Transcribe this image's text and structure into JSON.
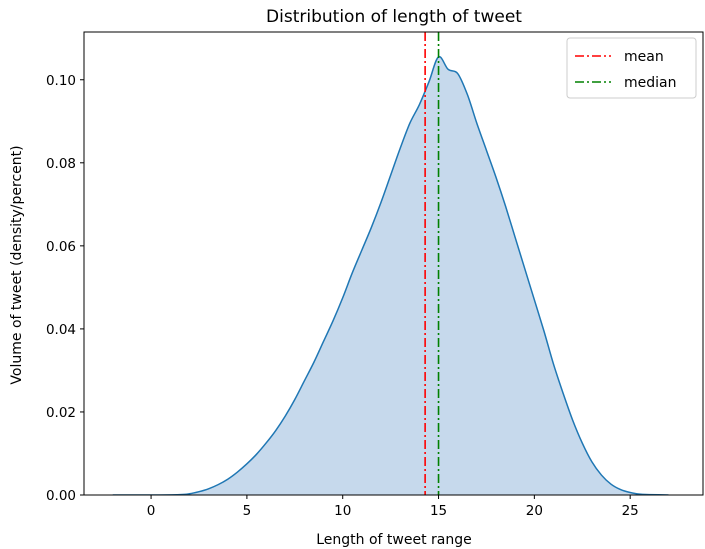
{
  "chart_data": {
    "type": "area",
    "title": "Distribution of length of tweet",
    "xlabel": "Length of tweet range",
    "ylabel": "Volume of tweet (density/percent)",
    "xlim": [
      -3.5,
      28.8
    ],
    "ylim": [
      0,
      0.1115
    ],
    "x_ticks": [
      0,
      5,
      10,
      15,
      20,
      25
    ],
    "y_ticks": [
      0.0,
      0.02,
      0.04,
      0.06,
      0.08,
      0.1
    ],
    "x_tick_labels": [
      "0",
      "5",
      "10",
      "15",
      "20",
      "25"
    ],
    "y_tick_labels": [
      "0.00",
      "0.02",
      "0.04",
      "0.06",
      "0.08",
      "0.10"
    ],
    "grid": false,
    "legend_position": "top-right",
    "series": [
      {
        "kind": "kde",
        "color": "#1f77b4",
        "fill_color": "#c6d9ec",
        "x": [
          -2,
          0,
          1.5,
          2,
          2.5,
          3,
          3.5,
          4,
          4.5,
          5,
          5.5,
          6,
          6.5,
          7,
          7.5,
          8,
          8.5,
          9,
          9.5,
          10,
          10.5,
          11,
          11.5,
          12,
          12.5,
          13,
          13.5,
          14,
          14.5,
          15,
          15.5,
          16,
          16.5,
          17,
          17.5,
          18,
          18.5,
          19,
          19.5,
          20,
          20.5,
          21,
          21.5,
          22,
          22.5,
          23,
          23.5,
          24,
          24.5,
          25,
          25.5,
          26,
          27
        ],
        "y": [
          0.0,
          0.0,
          0.0001,
          0.0003,
          0.0008,
          0.0015,
          0.0025,
          0.0038,
          0.0055,
          0.0075,
          0.0098,
          0.0125,
          0.0155,
          0.019,
          0.023,
          0.0275,
          0.032,
          0.037,
          0.042,
          0.0475,
          0.0535,
          0.059,
          0.0645,
          0.0705,
          0.077,
          0.0835,
          0.0895,
          0.094,
          0.0995,
          0.1055,
          0.1025,
          0.1015,
          0.0965,
          0.0895,
          0.083,
          0.0765,
          0.0695,
          0.062,
          0.0545,
          0.047,
          0.0395,
          0.0315,
          0.0245,
          0.018,
          0.0125,
          0.008,
          0.0048,
          0.0026,
          0.0013,
          0.0006,
          0.0002,
          0.0001,
          0.0
        ]
      }
    ],
    "vlines": [
      {
        "name": "mean",
        "x": 14.3,
        "color": "#ff0000",
        "style": "dashdot"
      },
      {
        "name": "median",
        "x": 15.0,
        "color": "#008000",
        "style": "dashdot"
      }
    ]
  }
}
